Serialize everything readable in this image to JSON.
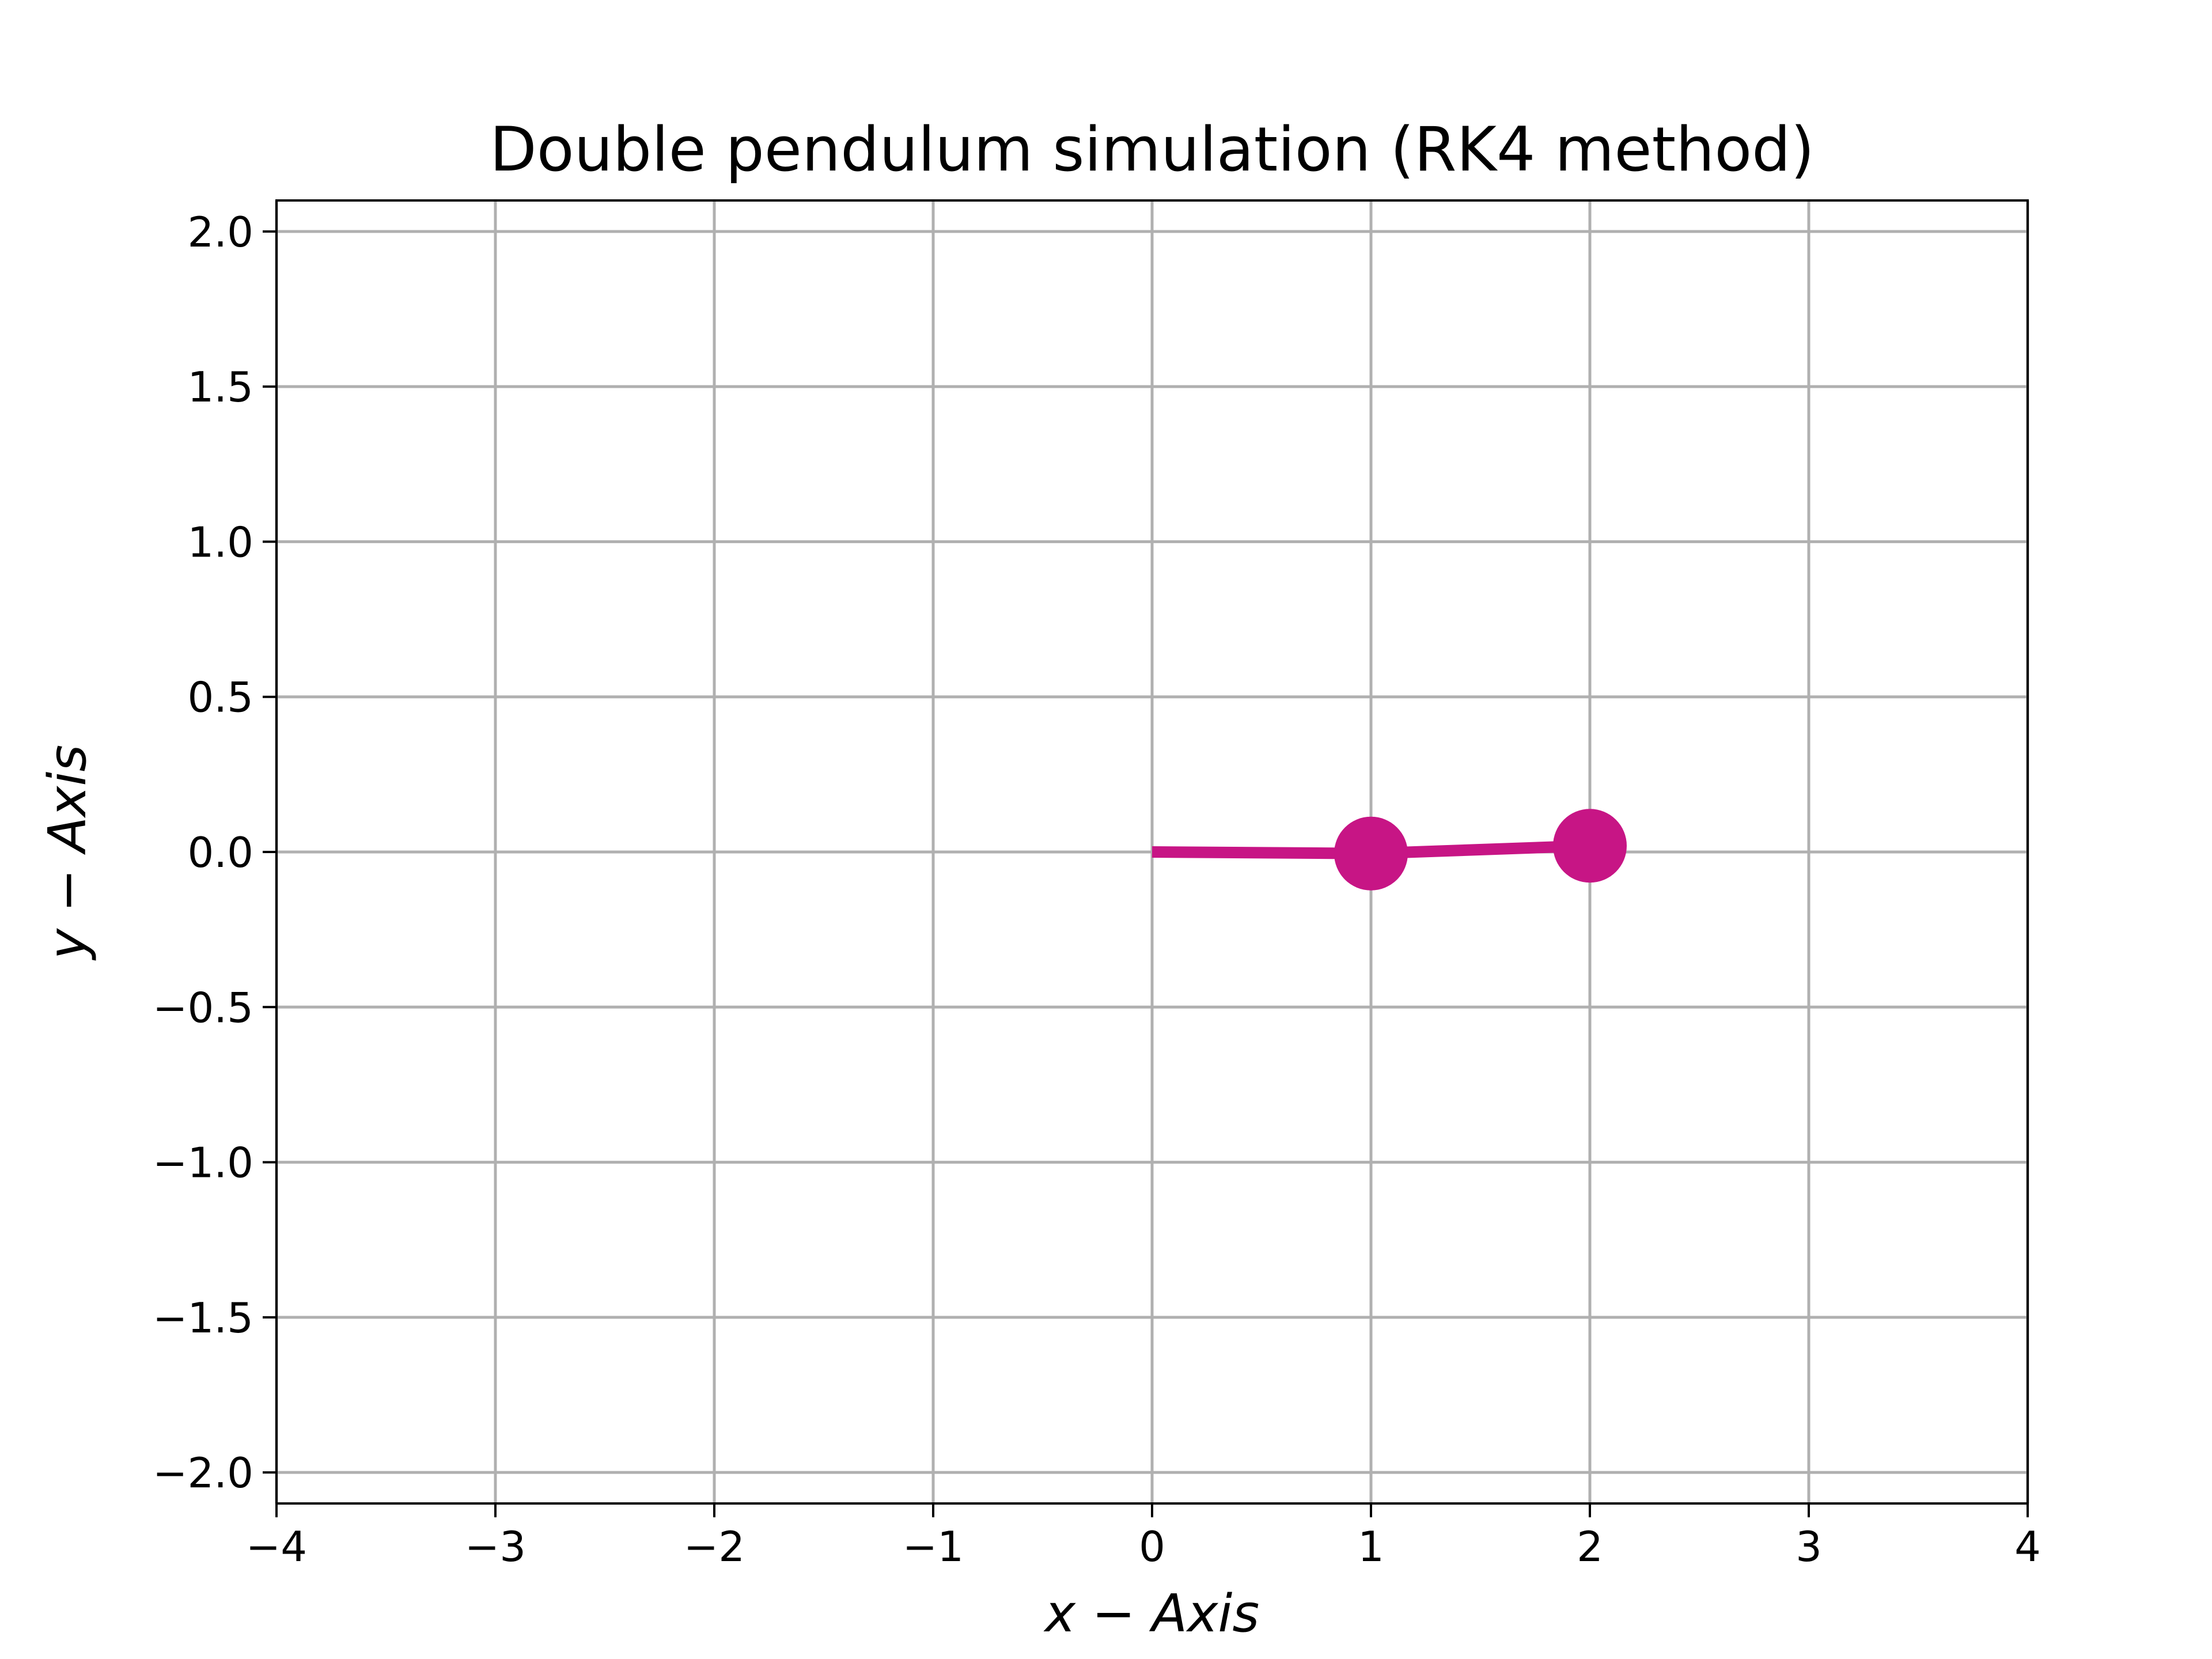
{
  "chart_data": {
    "type": "line",
    "title": "Double pendulum simulation (RK4 method)",
    "xlabel": "x − Axis",
    "ylabel": "y − Axis",
    "xlim": [
      -4,
      4
    ],
    "ylim": [
      -2.1,
      2.1
    ],
    "xticks": [
      -4,
      -3,
      -2,
      -1,
      0,
      1,
      2,
      3,
      4
    ],
    "xtick_labels": [
      "−4",
      "−3",
      "−2",
      "−1",
      "0",
      "1",
      "2",
      "3",
      "4"
    ],
    "yticks": [
      -2.0,
      -1.5,
      -1.0,
      -0.5,
      0.0,
      0.5,
      1.0,
      1.5,
      2.0
    ],
    "ytick_labels": [
      "−2.0",
      "−1.5",
      "−1.0",
      "−0.5",
      "0.0",
      "0.5",
      "1.0",
      "1.5",
      "2.0"
    ],
    "grid": true,
    "series": [
      {
        "x": [
          0,
          1,
          2
        ],
        "y": [
          0,
          -0.005,
          0.02
        ],
        "color": "#c71585",
        "markers": [
          1,
          2
        ]
      }
    ]
  }
}
